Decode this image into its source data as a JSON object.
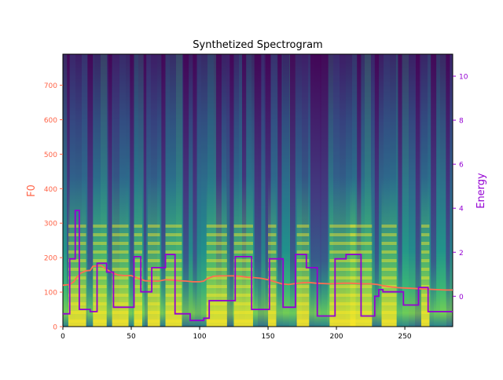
{
  "chart_data": {
    "type": "heatmap",
    "title": "Synthetized Spectrogram",
    "xlabel": "",
    "ylabel_left": "F0",
    "ylabel_right": "Energy",
    "xlim": [
      0,
      285
    ],
    "ylim_left": [
      0,
      790
    ],
    "ylim_right": [
      -1.38,
      11.0
    ],
    "x_ticks": [
      0,
      50,
      100,
      150,
      200,
      250
    ],
    "y_ticks_left": [
      0,
      100,
      200,
      300,
      400,
      500,
      600,
      700
    ],
    "y_ticks_right": [
      0,
      2,
      4,
      6,
      8,
      10
    ],
    "colors": {
      "f0": "#ff6e50",
      "energy": "#9400d3",
      "f0_axis": "#ff6347",
      "energy_axis": "#9400d3",
      "colormap": "viridis"
    },
    "series": [
      {
        "name": "F0",
        "axis": "left",
        "x": [
          0,
          5,
          8,
          10,
          13,
          17,
          20,
          22,
          28,
          30,
          35,
          40,
          45,
          50,
          55,
          60,
          65,
          70,
          75,
          80,
          85,
          90,
          95,
          100,
          103,
          105,
          110,
          115,
          120,
          125,
          130,
          135,
          140,
          145,
          150,
          155,
          160,
          165,
          170,
          175,
          180,
          185,
          190,
          195,
          200,
          205,
          210,
          215,
          220,
          225,
          230,
          235,
          240,
          245,
          250,
          255,
          260,
          265,
          270,
          275,
          280,
          285
        ],
        "y": [
          120,
          122,
          130,
          142,
          155,
          162,
          163,
          175,
          177,
          172,
          158,
          150,
          148,
          148,
          140,
          133,
          132,
          132,
          136,
          135,
          133,
          132,
          130,
          130,
          132,
          138,
          146,
          147,
          147,
          147,
          146,
          143,
          142,
          140,
          136,
          130,
          124,
          122,
          125,
          127,
          128,
          126,
          125,
          124,
          125,
          126,
          126,
          125,
          124,
          124,
          122,
          118,
          115,
          113,
          112,
          111,
          110,
          109,
          108,
          107,
          106,
          106
        ]
      },
      {
        "name": "Energy",
        "axis": "right",
        "x": [
          0,
          5,
          9,
          12,
          15,
          20,
          25,
          28,
          32,
          37,
          52,
          57,
          65,
          75,
          82,
          93,
          103,
          107,
          126,
          138,
          151,
          161,
          170,
          178,
          186,
          199,
          207,
          218,
          228,
          231,
          234,
          237,
          240,
          249,
          260,
          267,
          285
        ],
        "y": [
          -0.8,
          1.7,
          3.9,
          -0.6,
          -0.6,
          -0.7,
          1.5,
          1.5,
          1.1,
          -0.5,
          1.8,
          0.2,
          1.3,
          1.9,
          -0.8,
          -1.1,
          -1.0,
          -0.2,
          1.8,
          -0.6,
          1.7,
          -0.5,
          1.9,
          1.3,
          -0.9,
          1.7,
          1.9,
          -0.9,
          0.0,
          0.3,
          0.2,
          0.2,
          0.2,
          -0.4,
          0.4,
          -0.7,
          -0.7
        ]
      }
    ]
  }
}
